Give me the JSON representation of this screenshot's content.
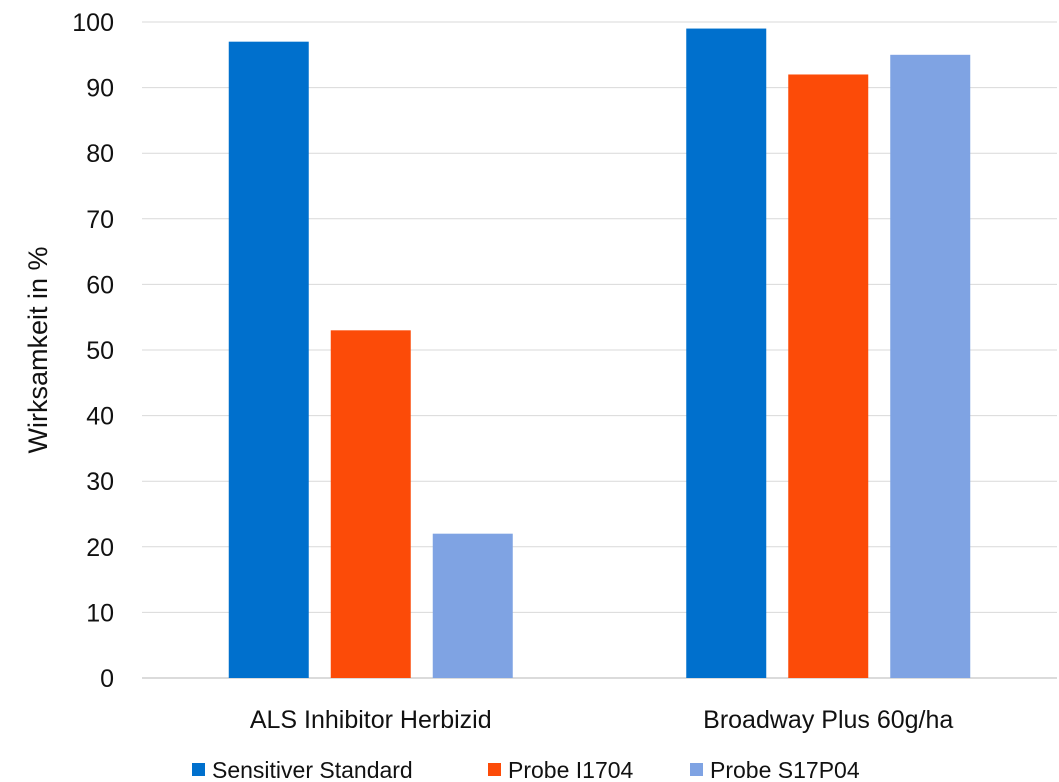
{
  "chart_data": {
    "type": "bar",
    "title": "",
    "xlabel": "",
    "ylabel": "Wirksamkeit in %",
    "ylim": [
      0,
      100
    ],
    "yticks": [
      0,
      10,
      20,
      30,
      40,
      50,
      60,
      70,
      80,
      90,
      100
    ],
    "grid": true,
    "legend_position": "bottom",
    "categories": [
      "ALS Inhibitor Herbizid",
      "Broadway Plus 60g/ha"
    ],
    "series": [
      {
        "name": "Sensitiver Standard",
        "color": "#0070cd",
        "values": [
          97,
          99
        ]
      },
      {
        "name": "Probe I1704",
        "color": "#fc4b08",
        "values": [
          53,
          92
        ]
      },
      {
        "name": "Probe S17P04",
        "color": "#7fa3e3",
        "values": [
          22,
          95
        ]
      }
    ]
  }
}
